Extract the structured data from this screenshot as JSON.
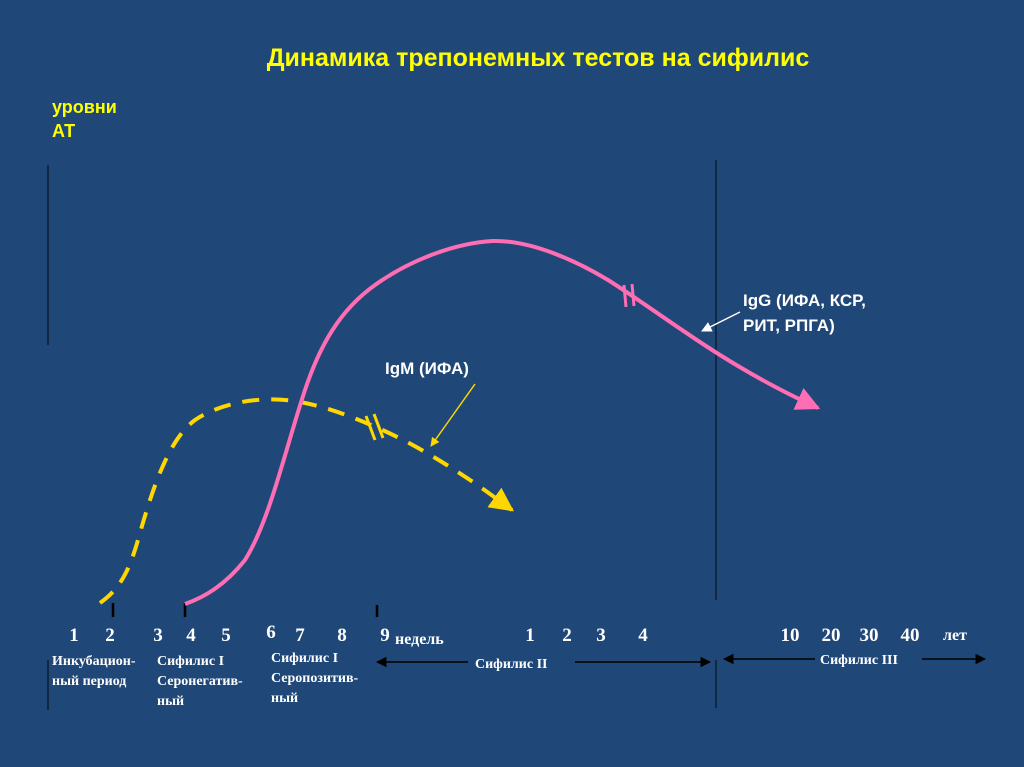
{
  "title": "Динамика трепонемных тестов на сифилис",
  "y_label": [
    "уровни",
    "АТ"
  ],
  "colors": {
    "background": "#1f4777",
    "title": "#ffff00",
    "igg": "#ff6eb4",
    "igm": "#ffd700",
    "text": "#ffffff",
    "axis": "#0d1e33"
  },
  "series": {
    "igg": {
      "label": [
        "IgG (ИФА, КСР,",
        "РИТ, РПГА)"
      ],
      "style": "solid"
    },
    "igm": {
      "label": [
        "IgM (ИФА)"
      ],
      "style": "dashed"
    }
  },
  "ticks": {
    "weeks": [
      "1",
      "2",
      "3",
      "4",
      "5",
      "6",
      "7",
      "8",
      "9"
    ],
    "weeks_unit": "недель",
    "months": [
      "1",
      "2",
      "3",
      "4"
    ],
    "years": [
      "10",
      "20",
      "30",
      "40"
    ],
    "years_unit": "лет"
  },
  "periods": {
    "incubation": [
      "Инкубацион-",
      "ный период"
    ],
    "primary_seroneg": [
      "Сифилис I",
      "Серонегатив-",
      "ный"
    ],
    "primary_seropos": [
      "Сифилис I",
      "Серопозитив-",
      "ный"
    ],
    "secondary": "Сифилис  II",
    "tertiary": "Сифилис III"
  }
}
